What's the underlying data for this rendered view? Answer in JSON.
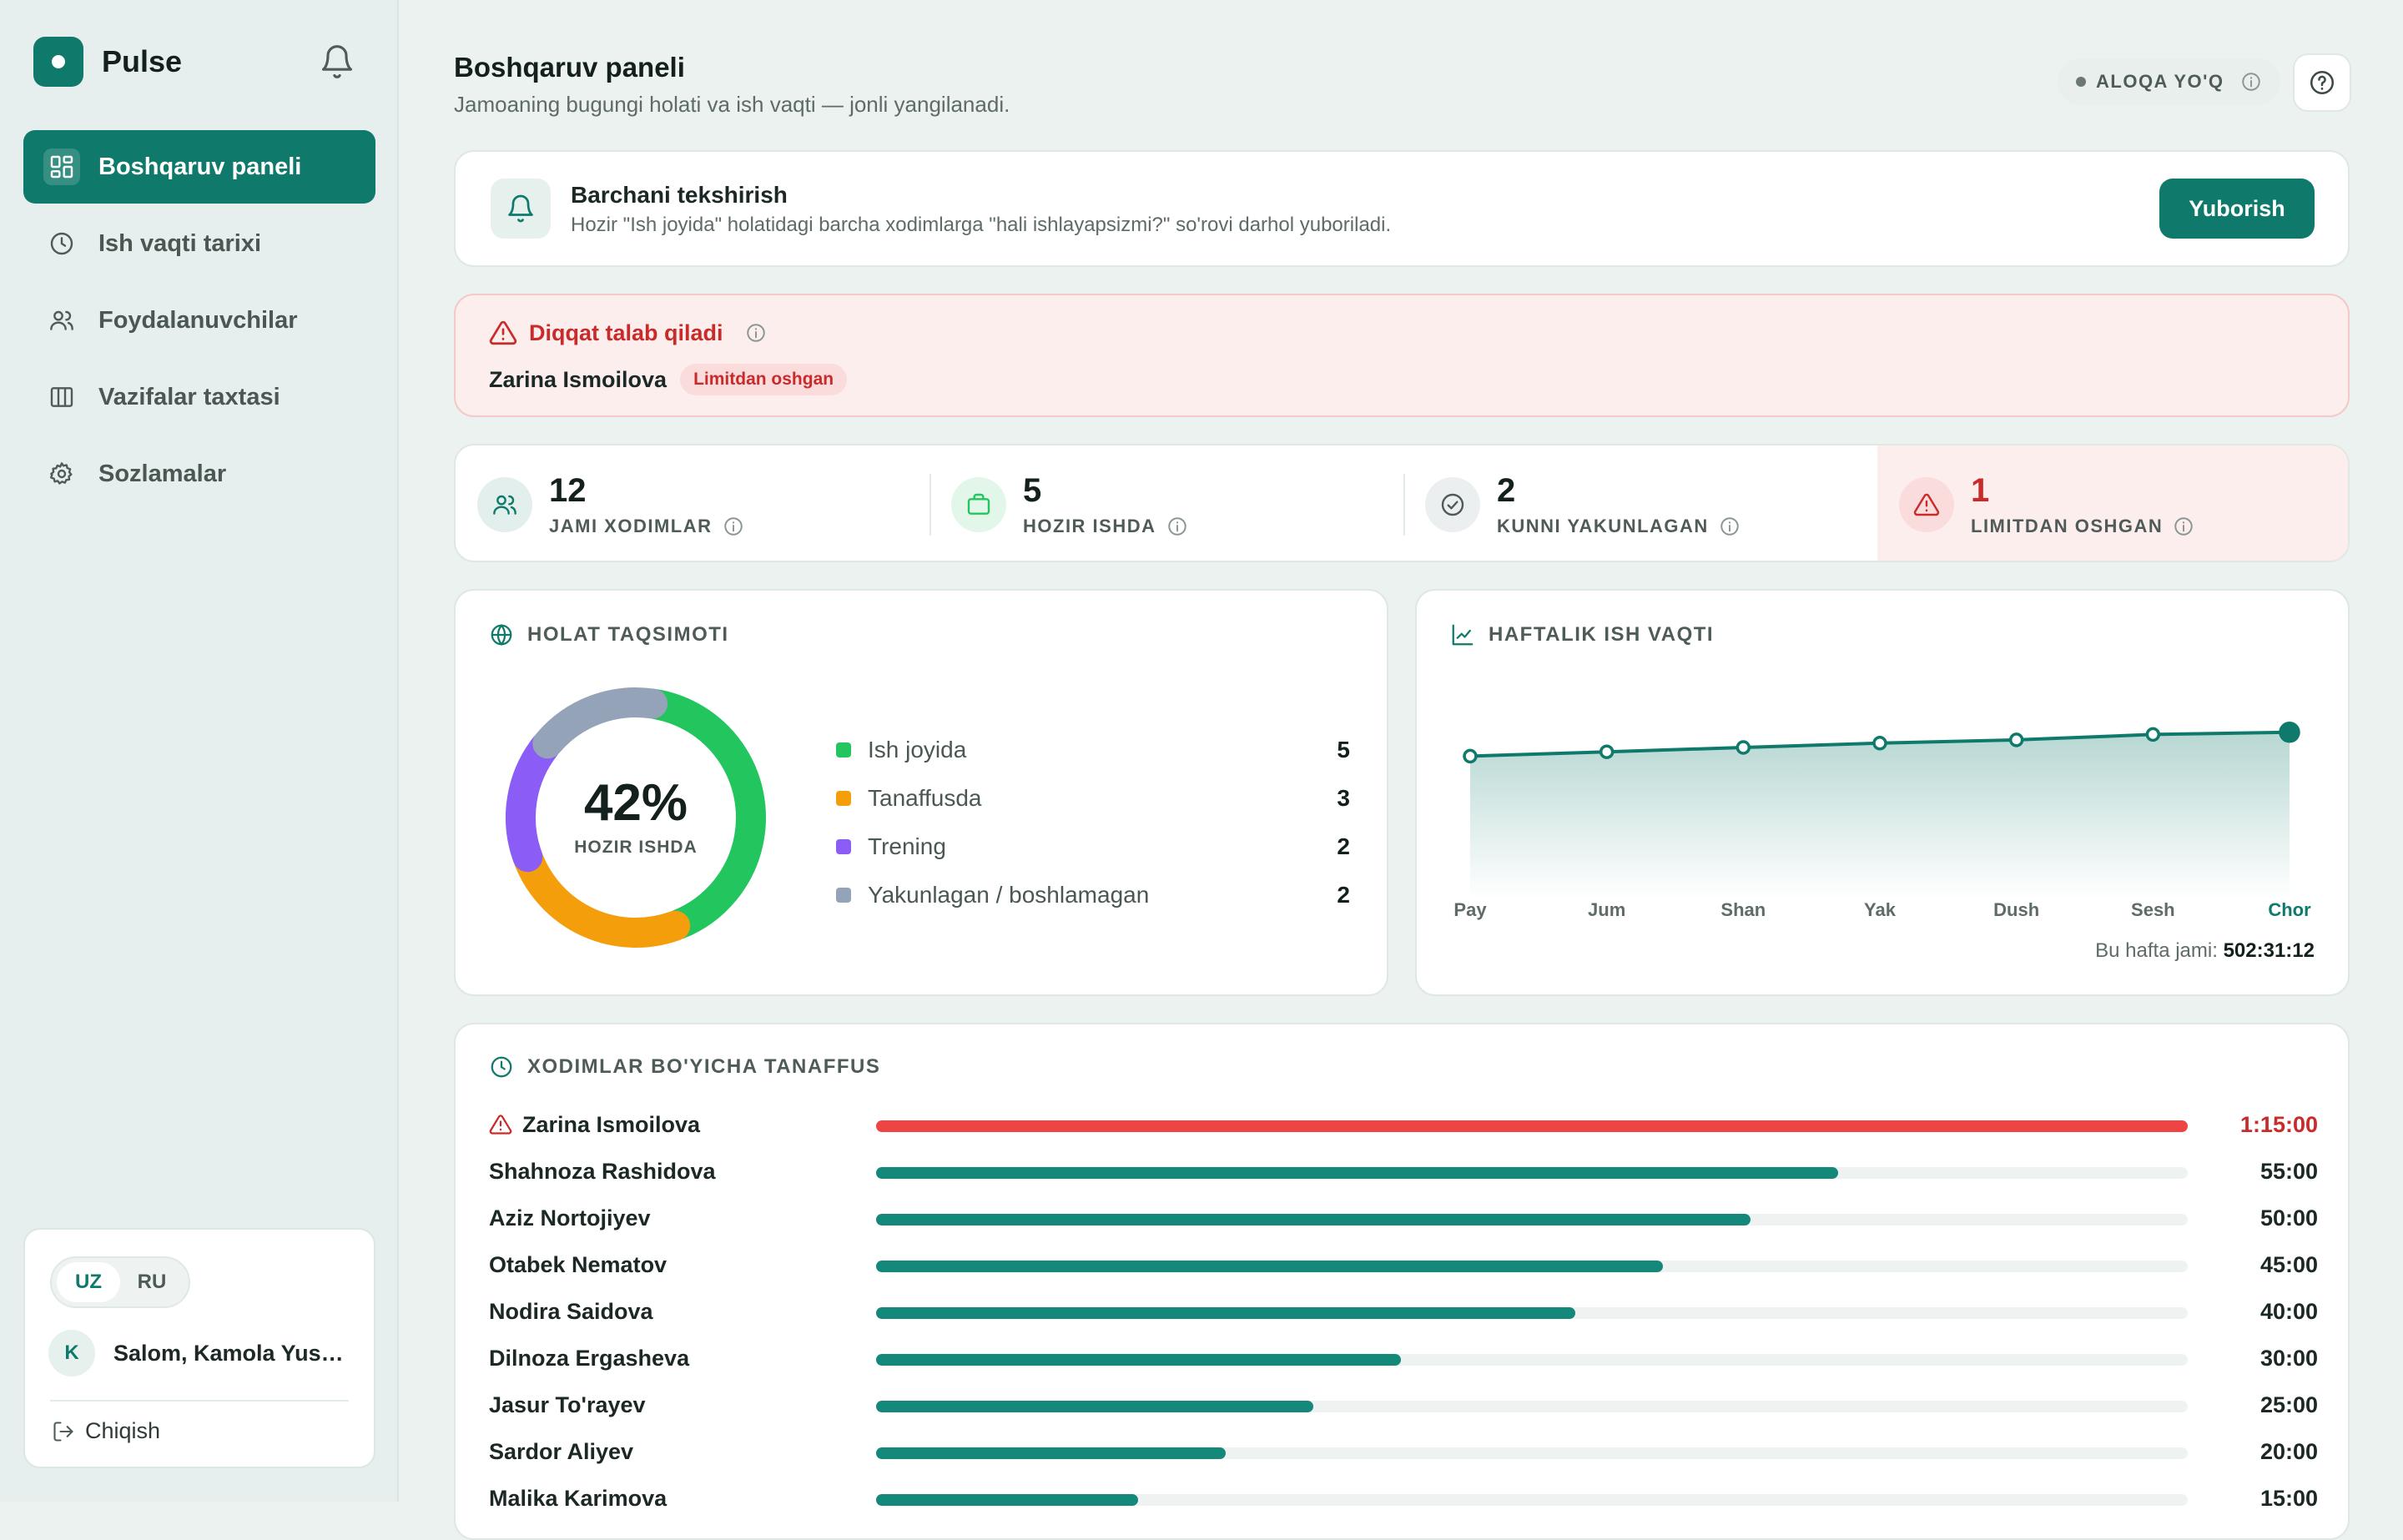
{
  "app": {
    "name": "Pulse"
  },
  "sidebar": {
    "items": [
      {
        "label": "Boshqaruv paneli",
        "icon": "dashboard-icon",
        "active": true
      },
      {
        "label": "Ish vaqti tarixi",
        "icon": "clock-icon",
        "active": false
      },
      {
        "label": "Foydalanuvchilar",
        "icon": "users-icon",
        "active": false
      },
      {
        "label": "Vazifalar taxtasi",
        "icon": "board-icon",
        "active": false
      },
      {
        "label": "Sozlamalar",
        "icon": "gear-icon",
        "active": false
      }
    ],
    "languages": [
      "UZ",
      "RU"
    ],
    "active_language": "UZ",
    "user_initial": "K",
    "greeting": "Salom, Kamola Yusu...",
    "logout_label": "Chiqish"
  },
  "header": {
    "title": "Boshqaruv paneli",
    "subtitle": "Jamoaning bugungi holati va ish vaqti — jonli yangilanadi.",
    "connection_status": "ALOQA YO'Q"
  },
  "check_all": {
    "title": "Barchani tekshirish",
    "description": "Hozir \"Ish joyida\" holatidagi barcha xodimlarga \"hali ishlayapsizmi?\" so'rovi darhol yuboriladi.",
    "button_label": "Yuborish"
  },
  "attention": {
    "title": "Diqqat talab qiladi",
    "person": "Zarina Ismoilova",
    "badge": "Limitdan oshgan"
  },
  "stats": [
    {
      "value": "12",
      "label": "JAMI XODIMLAR",
      "icon": "users-icon"
    },
    {
      "value": "5",
      "label": "HOZIR ISHDA",
      "icon": "briefcase-icon"
    },
    {
      "value": "2",
      "label": "KUNNI YAKUNLAGAN",
      "icon": "check-circle-icon"
    },
    {
      "value": "1",
      "label": "LIMITDAN OSHGAN",
      "icon": "warning-icon"
    }
  ],
  "status_distribution": {
    "title": "HOLAT TAQSIMOTI",
    "center_value": "42%",
    "center_label": "HOZIR ISHDA",
    "items": [
      {
        "label": "Ish joyida",
        "value": 5,
        "color": "#22c55e"
      },
      {
        "label": "Tanaffusda",
        "value": 3,
        "color": "#f59e0b"
      },
      {
        "label": "Trening",
        "value": 2,
        "color": "#8b5cf6"
      },
      {
        "label": "Yakunlagan / boshlamagan",
        "value": 2,
        "color": "#94a3b8"
      }
    ]
  },
  "weekly": {
    "title": "HAFTALIK ISH VAQTI",
    "total_label": "Bu hafta jami:",
    "total_value": "502:31:12"
  },
  "chart_data": {
    "type": "area",
    "categories": [
      "Pay",
      "Jum",
      "Shan",
      "Yak",
      "Dush",
      "Sesh",
      "Chor"
    ],
    "series": [
      {
        "values": [
          66,
          68,
          70,
          72,
          73.5,
          76,
          77
        ]
      }
    ],
    "highlight_category": "Chor",
    "ylim": [
      0,
      100
    ],
    "grid": false,
    "color": "#0f7a6b"
  },
  "breaks": {
    "title": "XODIMLAR BO'YICHA TANAFFUS",
    "max_minutes": 75,
    "rows": [
      {
        "name": "Zarina Ismoilova",
        "time": "1:15:00",
        "minutes": 75,
        "over": true
      },
      {
        "name": "Shahnoza Rashidova",
        "time": "55:00",
        "minutes": 55,
        "over": false
      },
      {
        "name": "Aziz Nortojiyev",
        "time": "50:00",
        "minutes": 50,
        "over": false
      },
      {
        "name": "Otabek Nematov",
        "time": "45:00",
        "minutes": 45,
        "over": false
      },
      {
        "name": "Nodira Saidova",
        "time": "40:00",
        "minutes": 40,
        "over": false
      },
      {
        "name": "Dilnoza Ergasheva",
        "time": "30:00",
        "minutes": 30,
        "over": false
      },
      {
        "name": "Jasur To'rayev",
        "time": "25:00",
        "minutes": 25,
        "over": false
      },
      {
        "name": "Sardor Aliyev",
        "time": "20:00",
        "minutes": 20,
        "over": false
      },
      {
        "name": "Malika Karimova",
        "time": "15:00",
        "minutes": 15,
        "over": false
      }
    ]
  }
}
